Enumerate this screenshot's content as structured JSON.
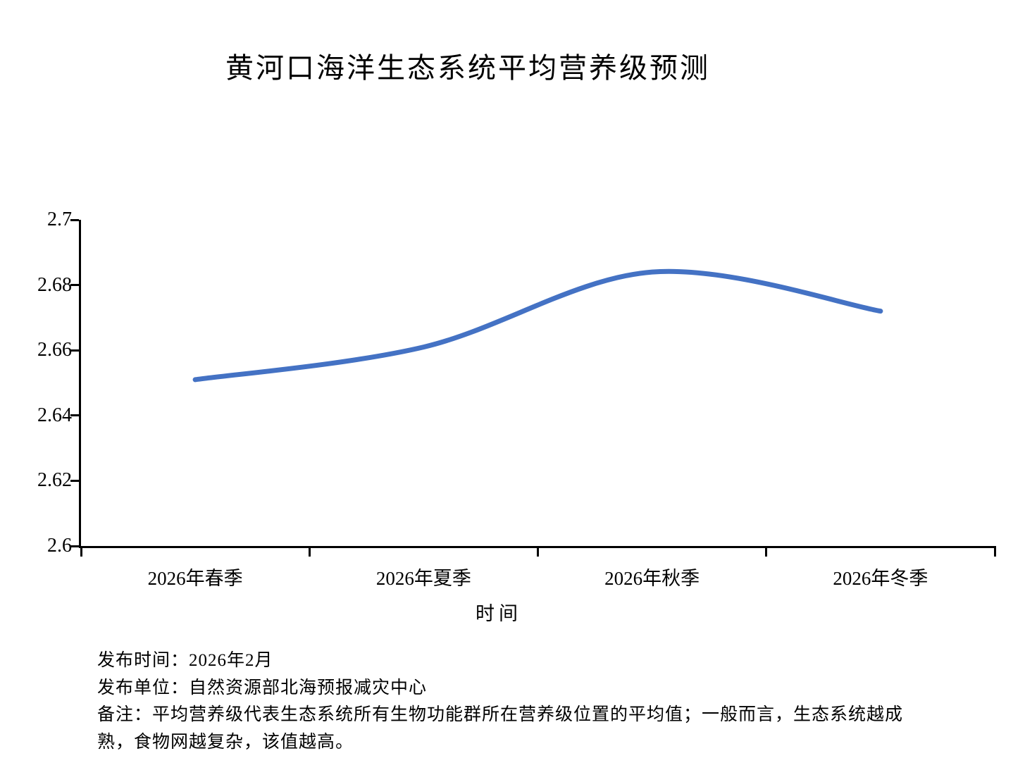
{
  "title": "黄河口海洋生态系统平均营养级预测",
  "chart_data": {
    "type": "line",
    "title": "黄河口海洋生态系统平均营养级预测",
    "categories": [
      "2026年春季",
      "2026年夏季",
      "2026年秋季",
      "2026年冬季"
    ],
    "values": [
      2.651,
      2.661,
      2.684,
      2.672
    ],
    "xlabel": "时间",
    "ylabel": "",
    "ylim": [
      2.6,
      2.7
    ],
    "yticks": [
      2.7,
      2.68,
      2.66,
      2.64,
      2.62,
      2.6
    ],
    "ytick_labels": [
      "2.7",
      "2.68",
      "2.66",
      "2.64",
      "2.62",
      "2.6"
    ],
    "grid": false,
    "legend": "none",
    "smooth": true,
    "line_color": "#4472C4",
    "line_width": 7
  },
  "footer": {
    "publish_time": "发布时间：2026年2月",
    "publish_org": "发布单位：自然资源部北海预报减灾中心",
    "note_line1": "备注：平均营养级代表生态系统所有生物功能群所在营养级位置的平均值；一般而言，生态系统越成",
    "note_line2": "熟，食物网越复杂，该值越高。"
  },
  "colors": {
    "background": "#ffffff",
    "axis": "#000000",
    "text": "#000000",
    "line": "#4472C4"
  }
}
